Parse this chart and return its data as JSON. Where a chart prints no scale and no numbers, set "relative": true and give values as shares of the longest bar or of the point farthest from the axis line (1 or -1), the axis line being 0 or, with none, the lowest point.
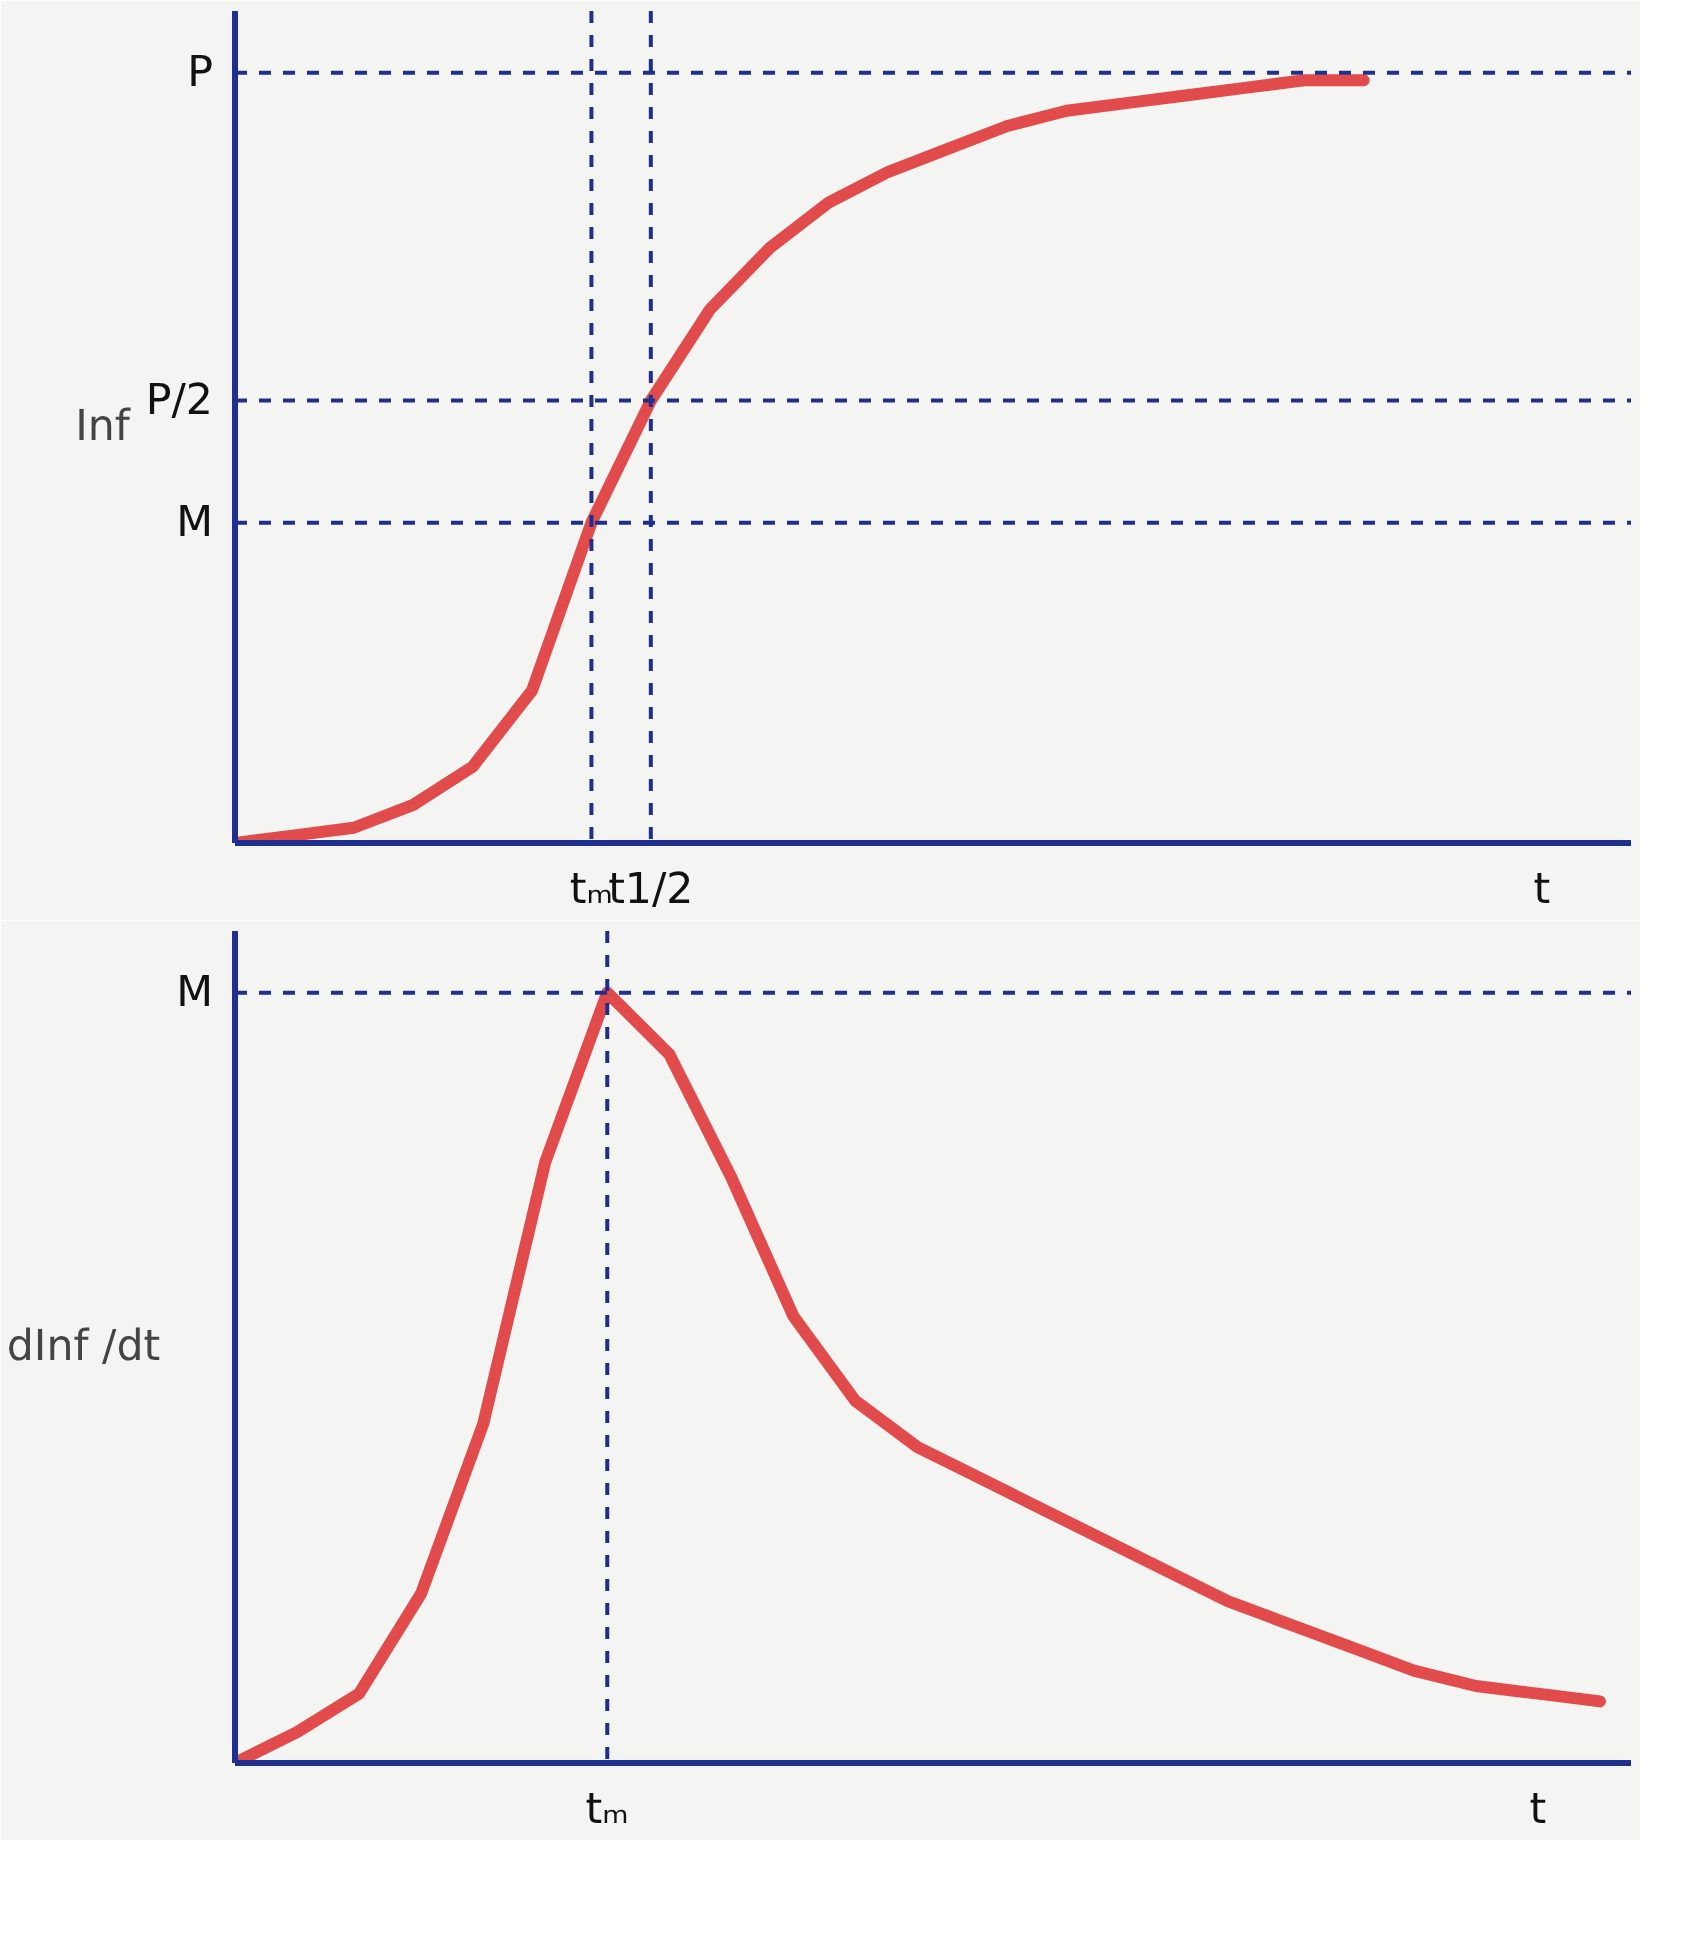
{
  "chart_data": [
    {
      "type": "line",
      "relative": true,
      "ylabel": "Inf",
      "categories": [
        null,
        null,
        null,
        null,
        null,
        null,
        "tₘ",
        "t1/2",
        null,
        null,
        null,
        null,
        null,
        null,
        null,
        null,
        null,
        null,
        null,
        null,
        null,
        null,
        "t",
        null
      ],
      "series": [
        {
          "color": "#e0383a",
          "values": [
            0,
            0.01,
            0.02,
            0.05,
            0.1,
            0.2,
            0.42,
            0.58,
            0.7,
            0.78,
            0.84,
            0.88,
            0.91,
            0.94,
            0.96,
            0.97,
            0.98,
            0.99,
            1.0,
            1.0,
            null,
            null,
            null,
            null
          ]
        }
      ],
      "ref_lines": [
        {
          "axis": "y",
          "value": 1.01,
          "label": "P",
          "color": "#1f2f8f",
          "line_style": "dashed"
        },
        {
          "axis": "y",
          "value": 0.58,
          "label": "P/2",
          "color": "#1f2f8f",
          "line_style": "dashed"
        },
        {
          "axis": "y",
          "value": 0.42,
          "label": "M",
          "color": "#1f2f8f",
          "line_style": "dashed"
        },
        {
          "axis": "x",
          "value": "tₘ",
          "color": "#1f2f8f",
          "line_style": "dashed"
        },
        {
          "axis": "x",
          "value": "t1/2",
          "color": "#1f2f8f",
          "line_style": "dashed"
        }
      ],
      "line_style": "solid"
    },
    {
      "type": "line",
      "relative": true,
      "ylabel": "dInf /dt",
      "categories": [
        null,
        null,
        null,
        null,
        null,
        null,
        "tₘ",
        null,
        null,
        null,
        null,
        null,
        null,
        null,
        null,
        null,
        null,
        null,
        null,
        null,
        null,
        "t",
        null
      ],
      "series": [
        {
          "color": "#e0383a",
          "values": [
            0,
            0.04,
            0.09,
            0.22,
            0.44,
            0.78,
            1.0,
            0.92,
            0.76,
            0.58,
            0.47,
            0.41,
            0.37,
            0.33,
            0.29,
            0.25,
            0.21,
            0.18,
            0.15,
            0.12,
            0.1,
            0.09,
            0.08
          ]
        }
      ],
      "ref_lines": [
        {
          "axis": "y",
          "value": 1.0,
          "label": "M",
          "color": "#1f2f8f",
          "line_style": "dashed"
        },
        {
          "axis": "x",
          "value": "tₘ",
          "color": "#1f2f8f",
          "line_style": "dashed"
        }
      ],
      "line_style": "solid"
    }
  ]
}
